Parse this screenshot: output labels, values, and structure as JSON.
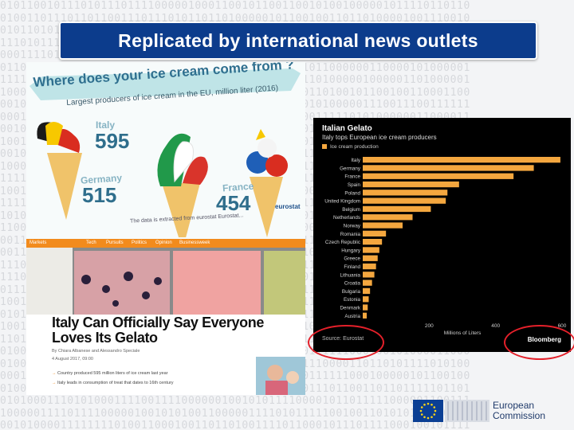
{
  "slide": {
    "title": "Replicated by international news outlets"
  },
  "infographic": {
    "heading": "Where does your ice cream come from ?",
    "subheading": "Largest producers of ice cream in the EU, million liter (2016)",
    "stats": [
      {
        "country": "Italy",
        "value": "595"
      },
      {
        "country": "Germany",
        "value": "515"
      },
      {
        "country": "France",
        "value": "454"
      }
    ],
    "footnote": "The data is extracted from eurostat Eurostat...",
    "brand": "eurostat"
  },
  "article": {
    "nav_items": [
      "Markets",
      "Tech",
      "Pursuits",
      "Politics",
      "Opinion",
      "Businessweek"
    ],
    "headline": "Italy Can Officially Say Everyone Loves Its Gelato",
    "byline": "By Chiara Albanese and Alessandro Speciale",
    "date": "4 August 2017, 09:00",
    "bullets": [
      "Country produced 595 million liters of ice cream last year",
      "Italy leads in consumption of treat that dates to 16th century"
    ]
  },
  "bloomberg": {
    "title": "Italian Gelato",
    "subtitle": "Italy tops European ice cream producers",
    "legend": "Ice cream production",
    "source": "Source: Eurostat",
    "logo": "Bloomberg"
  },
  "chart_data": {
    "type": "bar",
    "orientation": "horizontal",
    "title": "Italian Gelato",
    "subtitle": "Italy tops European ice cream producers",
    "xlabel": "Millions of Liters",
    "xlim": [
      0,
      600
    ],
    "xticks": [
      200,
      400,
      600
    ],
    "categories": [
      "Italy",
      "Germany",
      "France",
      "Spain",
      "Poland",
      "United Kingdom",
      "Belgium",
      "Netherlands",
      "Norway",
      "Romania",
      "Czech Republic",
      "Hungary",
      "Greece",
      "Finland",
      "Lithuania",
      "Croatia",
      "Bulgaria",
      "Estonia",
      "Denmark",
      "Austria"
    ],
    "series": [
      {
        "name": "Ice cream production",
        "color": "#f4a73f",
        "values": [
          595,
          515,
          454,
          290,
          255,
          250,
          205,
          150,
          120,
          70,
          58,
          50,
          45,
          40,
          35,
          28,
          22,
          18,
          15,
          12
        ]
      }
    ],
    "grid": false,
    "legend_position": "top-left"
  },
  "footer": {
    "org_line1": "European",
    "org_line2": "Commission"
  },
  "colors": {
    "title_bg": "#0c3c8c",
    "bar": "#f4a73f",
    "highlight": "#e4202a",
    "nav_orange": "#f28b1d"
  }
}
